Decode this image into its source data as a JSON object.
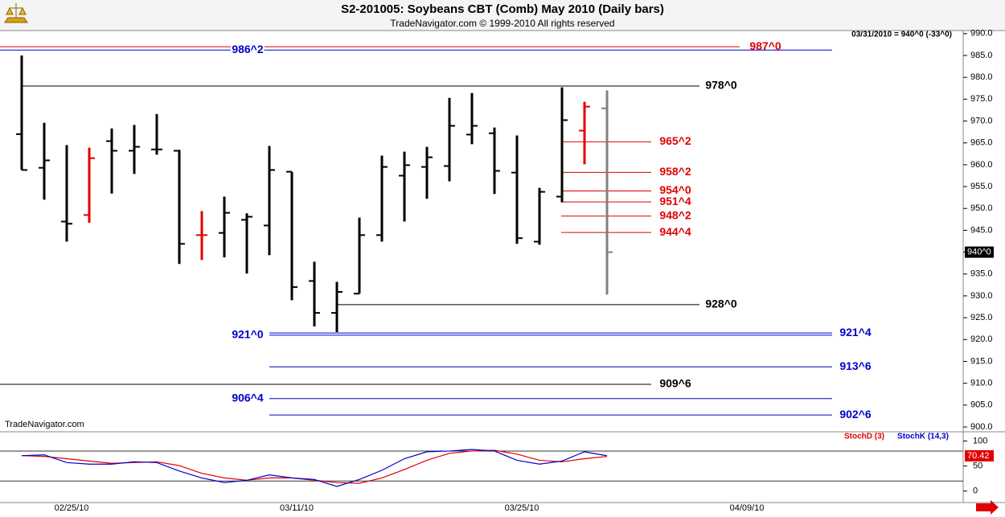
{
  "chart_data": [
    {
      "type": "ohlc",
      "title": "S2-201005:  Soybeans CBT (Comb) May 2010  (Daily bars)",
      "subtitle": "TradeNavigator.com © 1999-2010 All rights reserved",
      "watermark": "TradeNavigator.com",
      "info": "03/31/2010 = 940^0 (-33^0)",
      "categories": [
        null,
        null,
        "02/25/10",
        null,
        null,
        null,
        null,
        null,
        null,
        null,
        null,
        null,
        "03/11/10",
        null,
        null,
        null,
        null,
        null,
        null,
        null,
        null,
        null,
        "03/25/10",
        null,
        null,
        null,
        null,
        null,
        null,
        null,
        null,
        null,
        "04/09/10"
      ],
      "open": [
        967.0,
        959.3,
        947.0,
        948.5,
        965.4,
        963.2,
        963.5,
        963.2,
        943.9,
        944.4,
        947.4,
        946.1,
        958.4,
        933.4,
        926.1,
        930.5,
        943.9,
        957.5,
        959.5,
        959.7,
        966.9,
        967.2,
        958.2,
        942.4,
        952.7,
        967.8,
        972.9,
        null,
        null,
        null,
        null,
        null,
        null
      ],
      "high": [
        985.0,
        969.6,
        964.5,
        963.9,
        968.3,
        969.1,
        971.6,
        963.4,
        949.4,
        952.7,
        948.9,
        964.3,
        958.4,
        937.8,
        933.2,
        947.9,
        962.1,
        963.0,
        964.1,
        975.3,
        976.4,
        968.5,
        966.7,
        954.7,
        977.7,
        974.4,
        977.0,
        null,
        null,
        null,
        null,
        null,
        null
      ],
      "low": [
        958.8,
        952.0,
        942.4,
        946.7,
        953.4,
        957.9,
        962.3,
        937.3,
        938.2,
        938.8,
        935.1,
        939.3,
        929.0,
        923.0,
        921.7,
        930.5,
        942.4,
        947.0,
        952.2,
        956.2,
        964.7,
        953.3,
        941.9,
        941.7,
        951.4,
        960.1,
        930.3,
        null,
        null,
        null,
        null,
        null,
        null
      ],
      "close": [
        958.8,
        961.0,
        946.5,
        961.5,
        963.2,
        964.1,
        963.5,
        941.9,
        943.9,
        949.0,
        948.1,
        958.8,
        932.0,
        926.1,
        930.9,
        943.9,
        959.5,
        959.9,
        961.7,
        968.9,
        968.9,
        958.6,
        943.2,
        953.8,
        970.2,
        973.3,
        940.0,
        null,
        null,
        null,
        null,
        null,
        null
      ],
      "bar_colors": [
        "#000000",
        "#000000",
        "#000000",
        "#e00000",
        "#000000",
        "#000000",
        "#000000",
        "#000000",
        "#e00000",
        "#000000",
        "#000000",
        "#000000",
        "#000000",
        "#000000",
        "#000000",
        "#000000",
        "#000000",
        "#000000",
        "#000000",
        "#000000",
        "#000000",
        "#000000",
        "#000000",
        "#000000",
        "#000000",
        "#e00000",
        "#808080",
        null,
        null,
        null,
        null,
        null,
        null
      ],
      "last_price": {
        "value": 940,
        "label": "940^0"
      },
      "ylim": [
        898.9,
        990.7
      ],
      "yticks": [
        {
          "value": 900,
          "label": "900.0"
        },
        {
          "value": 905,
          "label": "905.0"
        },
        {
          "value": 910,
          "label": "910.0"
        },
        {
          "value": 915,
          "label": "915.0"
        },
        {
          "value": 920,
          "label": "920.0"
        },
        {
          "value": 925,
          "label": "925.0"
        },
        {
          "value": 930,
          "label": "930.0"
        },
        {
          "value": 935,
          "label": "935.0"
        },
        {
          "value": 940,
          "label": "940.0"
        },
        {
          "value": 945,
          "label": "945.0"
        },
        {
          "value": 950,
          "label": "950.0"
        },
        {
          "value": 955,
          "label": "955.0"
        },
        {
          "value": 960,
          "label": "960.0"
        },
        {
          "value": 965,
          "label": "965.0"
        },
        {
          "value": 970,
          "label": "970.0"
        },
        {
          "value": 975,
          "label": "975.0"
        },
        {
          "value": 980,
          "label": "980.0"
        },
        {
          "value": 985,
          "label": "985.0"
        },
        {
          "value": 990,
          "label": "990.0"
        }
      ],
      "levels": [
        {
          "value": 987,
          "label": "987^0",
          "color": "#e00000"
        },
        {
          "value": 986.25,
          "label": "986^2",
          "color": "#0000cc"
        },
        {
          "value": 978,
          "label": "978^0",
          "color": "#000000"
        },
        {
          "value": 965.25,
          "label": "965^2",
          "color": "#e00000"
        },
        {
          "value": 958.25,
          "label": "958^2",
          "color": "#e00000"
        },
        {
          "value": 954,
          "label": "954^0",
          "color": "#e00000"
        },
        {
          "value": 951.5,
          "label": "951^4",
          "color": "#e00000"
        },
        {
          "value": 948.25,
          "label": "948^2",
          "color": "#e00000"
        },
        {
          "value": 944.5,
          "label": "944^4",
          "color": "#e00000"
        },
        {
          "value": 928,
          "label": "928^0",
          "color": "#000000"
        },
        {
          "value": 921,
          "label": "921^0",
          "color": "#0000cc"
        },
        {
          "value": 921.5,
          "label": "921^4",
          "color": "#0000cc"
        },
        {
          "value": 913.75,
          "label": "913^6",
          "color": "#0000cc"
        },
        {
          "value": 909.75,
          "label": "909^6",
          "color": "#000000"
        },
        {
          "value": 906.5,
          "label": "906^4",
          "color": "#0000cc"
        },
        {
          "value": 902.75,
          "label": "902^6",
          "color": "#0000cc"
        }
      ]
    },
    {
      "type": "line",
      "series": [
        {
          "name": "StochD (3)",
          "color": "#e00000",
          "values": [
            70.8,
            69.2,
            64.6,
            60,
            55.4,
            56.9,
            58.5,
            50.8,
            35.4,
            26.2,
            21.5,
            26.2,
            26.2,
            21.5,
            16.9,
            15.4,
            26.2,
            43.1,
            61.5,
            75.4,
            80,
            81.5,
            73.8,
            61.5,
            58.5,
            64.6,
            69.2,
            null,
            null,
            null,
            null,
            null,
            null
          ]
        },
        {
          "name": "StochK (14,3)",
          "color": "#0000cc",
          "values": [
            70.8,
            72.3,
            56.9,
            53.8,
            53.8,
            58.5,
            56.9,
            40,
            26.2,
            16.9,
            21.5,
            32.3,
            26.2,
            23.1,
            9.2,
            23.1,
            41.5,
            64.6,
            78.5,
            80,
            83.1,
            80,
            61.5,
            53.8,
            60,
            78.5,
            70.42,
            null,
            null,
            null,
            null,
            null,
            null
          ],
          "value_labels": [
            null,
            null,
            null,
            null,
            null,
            null,
            null,
            null,
            null,
            null,
            null,
            null,
            null,
            null,
            null,
            null,
            null,
            null,
            null,
            null,
            null,
            null,
            null,
            null,
            null,
            null,
            "70.42",
            null,
            null,
            null,
            null,
            null,
            null
          ]
        }
      ],
      "ylim": [
        -23,
        118.5
      ],
      "yticks": [
        0,
        50,
        100
      ],
      "reference_lines": [
        20,
        80
      ]
    }
  ]
}
